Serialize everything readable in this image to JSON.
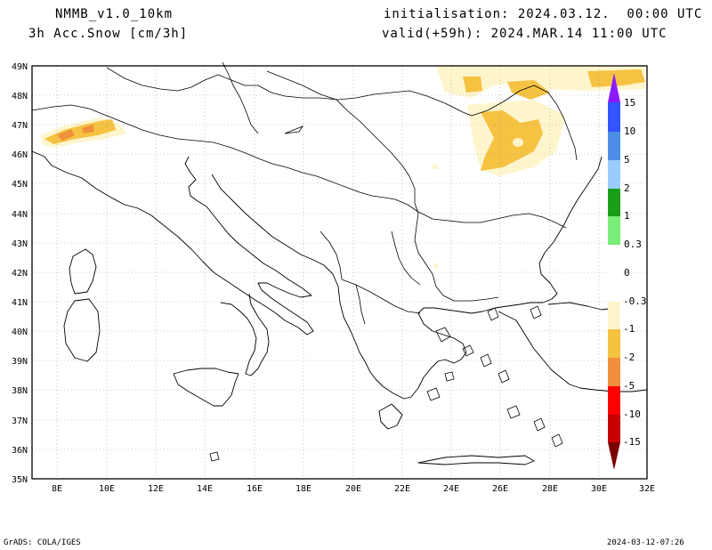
{
  "header": {
    "model": "NMMB_v1.0_10km",
    "variable": "3h Acc.Snow [cm/3h]",
    "init": "initialisation: 2024.03.12.  00:00 UTC",
    "valid": "valid(+59h): 2024.MAR.14 11:00 UTC"
  },
  "map": {
    "lat_labels": [
      "49N",
      "48N",
      "47N",
      "46N",
      "45N",
      "44N",
      "43N",
      "42N",
      "41N",
      "40N",
      "39N",
      "38N",
      "37N",
      "36N",
      "35N"
    ],
    "lon_labels": [
      "8E",
      "10E",
      "12E",
      "14E",
      "16E",
      "18E",
      "20E",
      "22E",
      "24E",
      "26E",
      "28E",
      "30E",
      "32E"
    ]
  },
  "colorbar": {
    "labels": [
      "15",
      "10",
      "5",
      "2",
      "1",
      "0.3",
      "0",
      "-0.3",
      "-1",
      "-2",
      "-5",
      "-10",
      "-15"
    ],
    "colors": {
      "purple": "#8c1aff",
      "blue": "#3355ff",
      "blue2": "#4d8de6",
      "lightblue": "#99ccff",
      "green": "#1a9e1a",
      "lightgreen": "#77ee77",
      "white": "#ffffff",
      "cream": "#fff5cc",
      "yellow": "#f5c242",
      "orange": "#f0903a",
      "red": "#ff0000",
      "darkred": "#c80000",
      "maroon": "#7a0000"
    }
  },
  "footer": {
    "left": "GrADS: COLA/IGES",
    "right": "2024-03-12-07:26"
  }
}
